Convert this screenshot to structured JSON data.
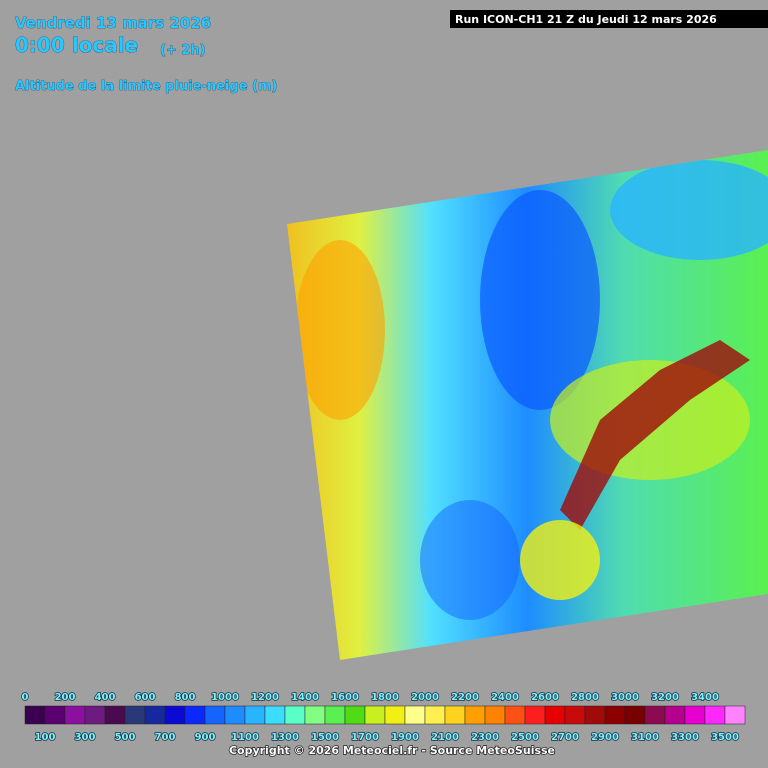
{
  "header": {
    "date": "Vendredi 13 mars 2026",
    "time": "0:00 locale",
    "offset": "(+ 2h)",
    "parameter": "Altitude de la limite pluie-neige (m)",
    "run": "Run ICON-CH1 21 Z du Jeudi 12 mars 2026"
  },
  "legend": {
    "top_labels": [
      0,
      200,
      400,
      600,
      800,
      1000,
      1200,
      1400,
      1600,
      1800,
      2000,
      2200,
      2400,
      2600,
      2800,
      3000,
      3200,
      3400
    ],
    "bottom_labels": [
      100,
      300,
      500,
      700,
      900,
      1100,
      1300,
      1500,
      1700,
      1900,
      2100,
      2300,
      2500,
      2700,
      2900,
      3100,
      3300,
      3500
    ],
    "colors": [
      "#3c0050",
      "#5a0070",
      "#8c10a0",
      "#6e1a80",
      "#4a0a50",
      "#283878",
      "#1428a0",
      "#0a0ad2",
      "#0a28ff",
      "#1464ff",
      "#1e8cff",
      "#28b4ff",
      "#3cdcff",
      "#5affc8",
      "#82ff82",
      "#5af050",
      "#50dc14",
      "#c8f01e",
      "#f0f014",
      "#ffff8c",
      "#fff050",
      "#ffd21e",
      "#ffa000",
      "#ff8200",
      "#ff5014",
      "#ff1e1e",
      "#e60000",
      "#c80a0a",
      "#a00a0a",
      "#8c0000",
      "#780000",
      "#8c0a50",
      "#b4008c",
      "#e600d2",
      "#ff28ff",
      "#ff82ff"
    ]
  },
  "footer": {
    "copyright": "Copyright © 2026 Meteociel.fr - Source MeteoSuisse"
  }
}
